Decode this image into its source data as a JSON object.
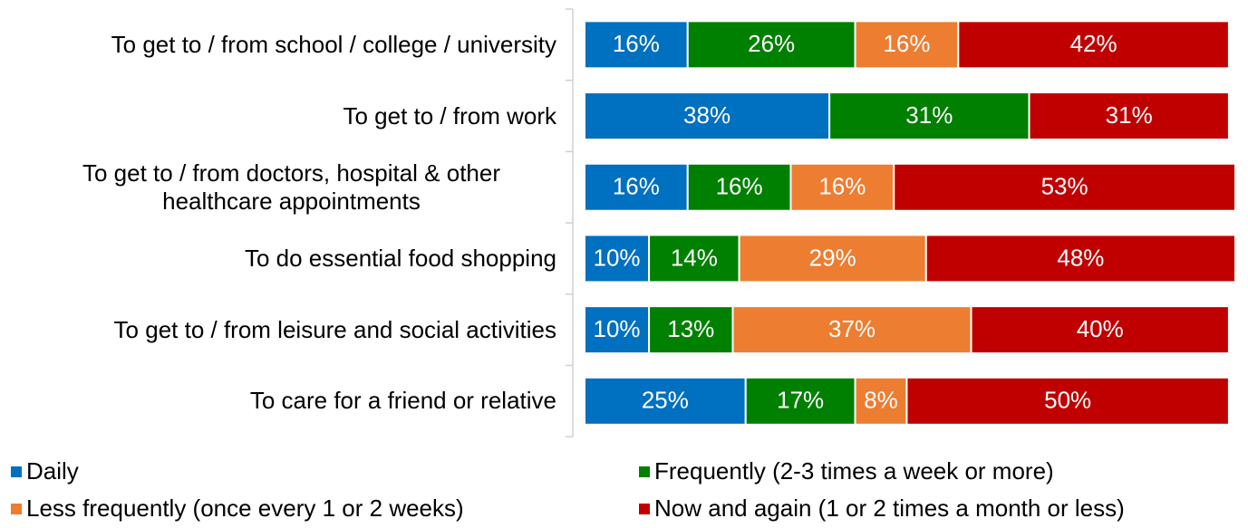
{
  "chart_data": {
    "type": "bar",
    "orientation": "horizontal",
    "stacked": true,
    "categories": [
      "To get to / from school / college / university",
      "To get to / from work",
      "To get to / from doctors, hospital & other healthcare appointments",
      "To do essential food shopping",
      "To get to / from leisure and social activities",
      "To care for a friend or relative"
    ],
    "series": [
      {
        "name": "Daily",
        "color": "#0070c0",
        "values": [
          16,
          38,
          16,
          10,
          10,
          25
        ],
        "value_labels": [
          "16%",
          "38%",
          "16%",
          "10%",
          "10%",
          "25%"
        ]
      },
      {
        "name": "Frequently (2-3 times a week or more)",
        "color": "#008000",
        "values": [
          26,
          31,
          16,
          14,
          13,
          17
        ],
        "value_labels": [
          "26%",
          "31%",
          "16%",
          "14%",
          "13%",
          "17%"
        ]
      },
      {
        "name": "Less frequently (once every 1 or 2 weeks)",
        "color": "#ed7d31",
        "values": [
          16,
          null,
          16,
          29,
          37,
          8
        ],
        "value_labels": [
          "16%",
          null,
          "16%",
          "29%",
          "37%",
          "8%"
        ]
      },
      {
        "name": "Now and again (1 or 2 times a month or less)",
        "color": "#c00000",
        "values": [
          42,
          31,
          53,
          48,
          40,
          50
        ],
        "value_labels": [
          "42%",
          "31%",
          "53%",
          "48%",
          "40%",
          "50%"
        ]
      }
    ],
    "legend": "bottom"
  }
}
